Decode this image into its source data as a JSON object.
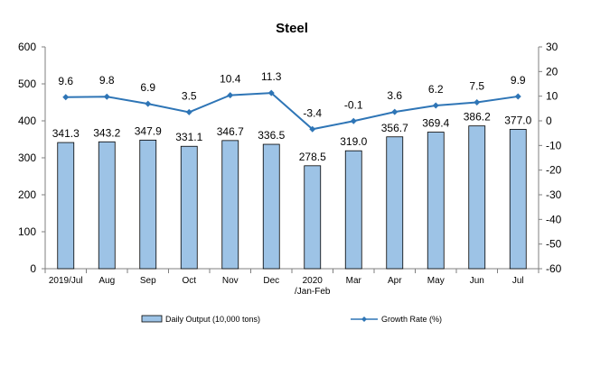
{
  "chart_data": {
    "type": "bar",
    "title": "Steel",
    "categories": [
      "2019/Jul",
      "Aug",
      "Sep",
      "Oct",
      "Nov",
      "Dec",
      "2020\n/Jan-Feb",
      "Mar",
      "Apr",
      "May",
      "Jun",
      "Jul"
    ],
    "series": [
      {
        "name": "Daily Output (10,000 tons)",
        "type": "bar",
        "axis": "left",
        "color": "#9dc3e6",
        "values": [
          341.3,
          343.2,
          347.9,
          331.1,
          346.7,
          336.5,
          278.5,
          319.0,
          356.7,
          369.4,
          386.2,
          377.0
        ],
        "labels": [
          "341.3",
          "343.2",
          "347.9",
          "331.1",
          "346.7",
          "336.5",
          "278.5",
          "319.0",
          "356.7",
          "369.4",
          "386.2",
          "377.0"
        ]
      },
      {
        "name": "Growth Rate (%)",
        "type": "line",
        "axis": "right",
        "color": "#2e75b6",
        "values": [
          9.6,
          9.8,
          6.9,
          3.5,
          10.4,
          11.3,
          -3.4,
          -0.1,
          3.6,
          6.2,
          7.5,
          9.9
        ],
        "labels": [
          "9.6",
          "9.8",
          "6.9",
          "3.5",
          "10.4",
          "11.3",
          "-3.4",
          "-0.1",
          "3.6",
          "6.2",
          "7.5",
          "9.9"
        ]
      }
    ],
    "y_left": {
      "min": 0,
      "max": 600,
      "ticks": [
        0,
        100,
        200,
        300,
        400,
        500,
        600
      ]
    },
    "y_right": {
      "min": -60,
      "max": 30,
      "ticks": [
        -60,
        -50,
        -40,
        -30,
        -20,
        -10,
        0,
        10,
        20,
        30
      ]
    },
    "grid": false,
    "legend_position": "bottom"
  }
}
